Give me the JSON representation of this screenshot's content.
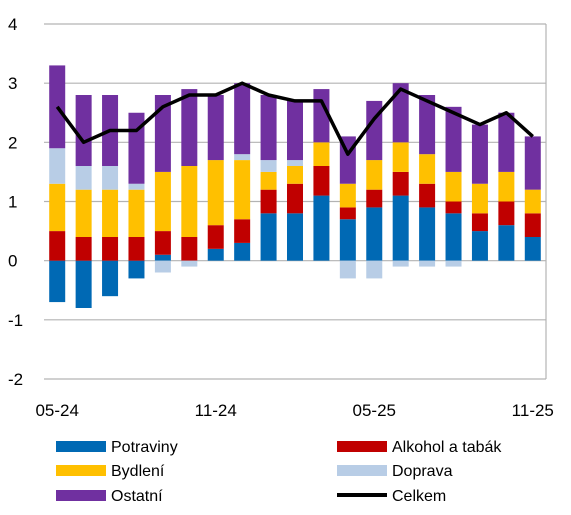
{
  "chart_data": {
    "type": "bar",
    "stacked": true,
    "categories": [
      "05-24",
      "06-24",
      "07-24",
      "08-24",
      "09-24",
      "10-24",
      "11-24",
      "12-24",
      "01-25",
      "02-25",
      "03-25",
      "04-25",
      "05-25",
      "06-25",
      "07-25",
      "08-25",
      "09-25",
      "10-25",
      "11-25"
    ],
    "x_tick_labels": [
      "05-24",
      "11-24",
      "05-25",
      "11-25"
    ],
    "ylim": [
      -2,
      4
    ],
    "y_ticks": [
      -2,
      -1,
      0,
      1,
      2,
      3,
      4
    ],
    "grid": true,
    "legend_position": "bottom",
    "series": [
      {
        "name": "Potraviny",
        "color": "#0069b4",
        "values": [
          -0.7,
          -0.8,
          -0.6,
          -0.3,
          0.1,
          0.0,
          0.2,
          0.3,
          0.8,
          0.8,
          1.1,
          0.7,
          0.9,
          1.1,
          0.9,
          0.8,
          0.5,
          0.6,
          0.4
        ]
      },
      {
        "name": "Alkohol a tabák",
        "color": "#c00000",
        "values": [
          0.5,
          0.4,
          0.4,
          0.4,
          0.4,
          0.4,
          0.4,
          0.4,
          0.4,
          0.5,
          0.5,
          0.2,
          0.3,
          0.4,
          0.4,
          0.2,
          0.3,
          0.4,
          0.4
        ]
      },
      {
        "name": "Bydlení",
        "color": "#ffc000",
        "values": [
          0.8,
          0.8,
          0.8,
          0.8,
          1.0,
          1.2,
          1.1,
          1.0,
          0.3,
          0.3,
          0.4,
          0.4,
          0.5,
          0.5,
          0.5,
          0.5,
          0.5,
          0.5,
          0.4
        ]
      },
      {
        "name": "Doprava",
        "color": "#b8cde6",
        "values": [
          0.6,
          0.4,
          0.4,
          0.1,
          -0.2,
          -0.1,
          0.0,
          0.1,
          0.2,
          0.1,
          0.0,
          -0.3,
          -0.3,
          -0.1,
          -0.1,
          -0.1,
          0.0,
          0.0,
          0.0
        ]
      },
      {
        "name": "Ostatní",
        "color": "#7030a0",
        "values": [
          1.4,
          1.2,
          1.2,
          1.2,
          1.3,
          1.3,
          1.1,
          1.2,
          1.1,
          1.0,
          0.9,
          0.8,
          1.0,
          1.0,
          1.0,
          1.1,
          1.0,
          1.0,
          0.9
        ]
      }
    ],
    "line": {
      "name": "Celkem",
      "color": "#000000",
      "values": [
        2.6,
        2.0,
        2.2,
        2.2,
        2.6,
        2.8,
        2.8,
        3.0,
        2.8,
        2.7,
        2.7,
        1.8,
        2.4,
        2.9,
        2.7,
        2.5,
        2.3,
        2.5,
        2.1
      ]
    }
  }
}
